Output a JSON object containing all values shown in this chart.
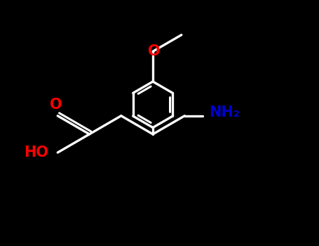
{
  "background_color": "#000000",
  "bond_color": "#ffffff",
  "N_color": "#0000cd",
  "O_color": "#ff0000",
  "lw": 2.4,
  "font_size": 15,
  "xlim": [
    0,
    10
  ],
  "ylim": [
    0,
    7.7
  ]
}
